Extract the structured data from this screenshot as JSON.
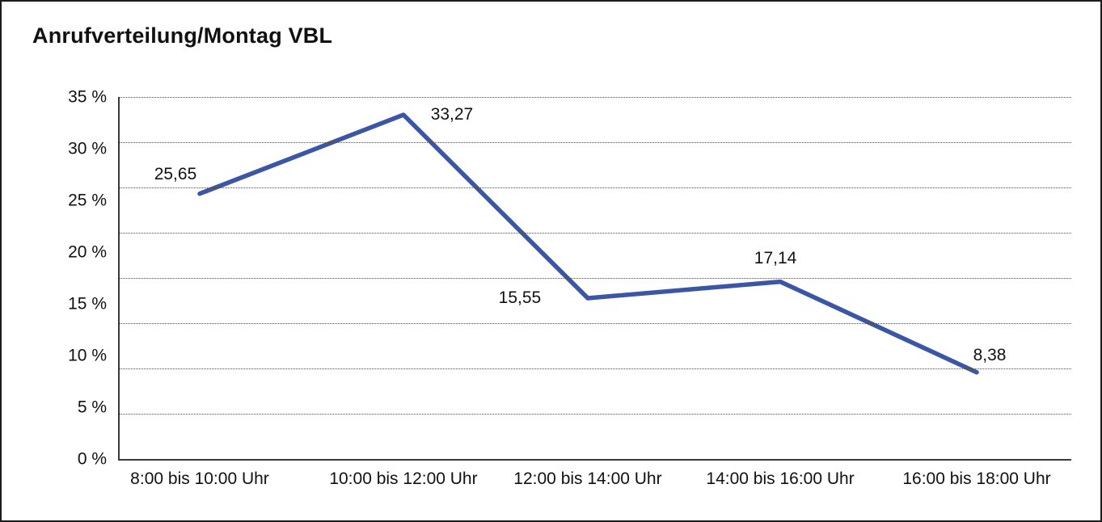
{
  "chart_data": {
    "type": "line",
    "title": "Anrufverteilung/Montag VBL",
    "categories": [
      "8:00 bis 10:00 Uhr",
      "10:00 bis 12:00 Uhr",
      "12:00 bis 14:00 Uhr",
      "14:00 bis 16:00 Uhr",
      "16:00 bis 18:00 Uhr"
    ],
    "series": [
      {
        "values": [
          25.65,
          33.27,
          15.55,
          17.14,
          8.38
        ],
        "labels": [
          "25,65",
          "33,27",
          "15,55",
          "17,14",
          "8,38"
        ],
        "color": "#3A56A4"
      }
    ],
    "y_ticks": [
      "35 %",
      "30 %",
      "25 %",
      "20 %",
      "15 %",
      "10 %",
      "5 %",
      "0 %"
    ],
    "ylim": [
      0,
      35
    ],
    "xlabel": "",
    "ylabel": "",
    "grid": "horizontal-dotted",
    "legend": "none",
    "decimal_separator": ","
  },
  "colors": {
    "line": "#3A56A4",
    "text": "#111111",
    "axis": "#3a3a3a",
    "gridline": "#4a4a4a",
    "background": "#ffffff",
    "frame_border": "#1c1c1c"
  }
}
